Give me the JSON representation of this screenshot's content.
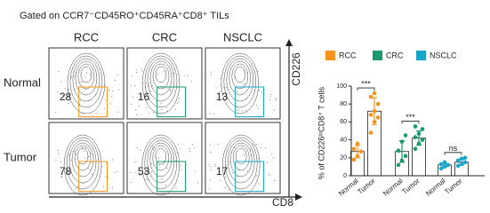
{
  "flow": {
    "title": "Gated on CCR7⁻CD45RO⁺CD45RA⁺CD8⁺ TILs",
    "columns": [
      "RCC",
      "CRC",
      "NSCLC"
    ],
    "rows": [
      "Normal",
      "Tumor"
    ],
    "percentages": [
      [
        28,
        16,
        13
      ],
      [
        78,
        53,
        17
      ]
    ],
    "y_label": "CD226",
    "x_label": "CD8"
  },
  "chart_data": {
    "type": "bar",
    "ylabel": "% of CD226ˡᵒCD8⁺ T cells",
    "categories": [
      "Normal",
      "Tumor"
    ],
    "ylim": [
      0,
      100
    ],
    "yticks": [
      0,
      20,
      40,
      60,
      80,
      100
    ],
    "series": [
      {
        "name": "RCC",
        "color": "#f7941d",
        "values": [
          27,
          72
        ],
        "errors": [
          7,
          15
        ],
        "points": [
          [
            18,
            22,
            27,
            30,
            36
          ],
          [
            48,
            60,
            65,
            68,
            72,
            80,
            88,
            92
          ]
        ]
      },
      {
        "name": "CRC",
        "color": "#1a9a6c",
        "values": [
          27,
          42
        ],
        "errors": [
          12,
          8
        ],
        "points": [
          [
            12,
            17,
            22,
            28,
            38,
            45
          ],
          [
            30,
            36,
            40,
            43,
            47,
            52,
            55
          ]
        ]
      },
      {
        "name": "NSCLC",
        "color": "#1aa6c9",
        "values": [
          12,
          15
        ],
        "errors": [
          2,
          3
        ],
        "points": [
          [
            8,
            10,
            12,
            13,
            15
          ],
          [
            11,
            13,
            15,
            17,
            19,
            20
          ]
        ]
      }
    ],
    "annotations": [
      "***",
      "***",
      "ns"
    ]
  }
}
